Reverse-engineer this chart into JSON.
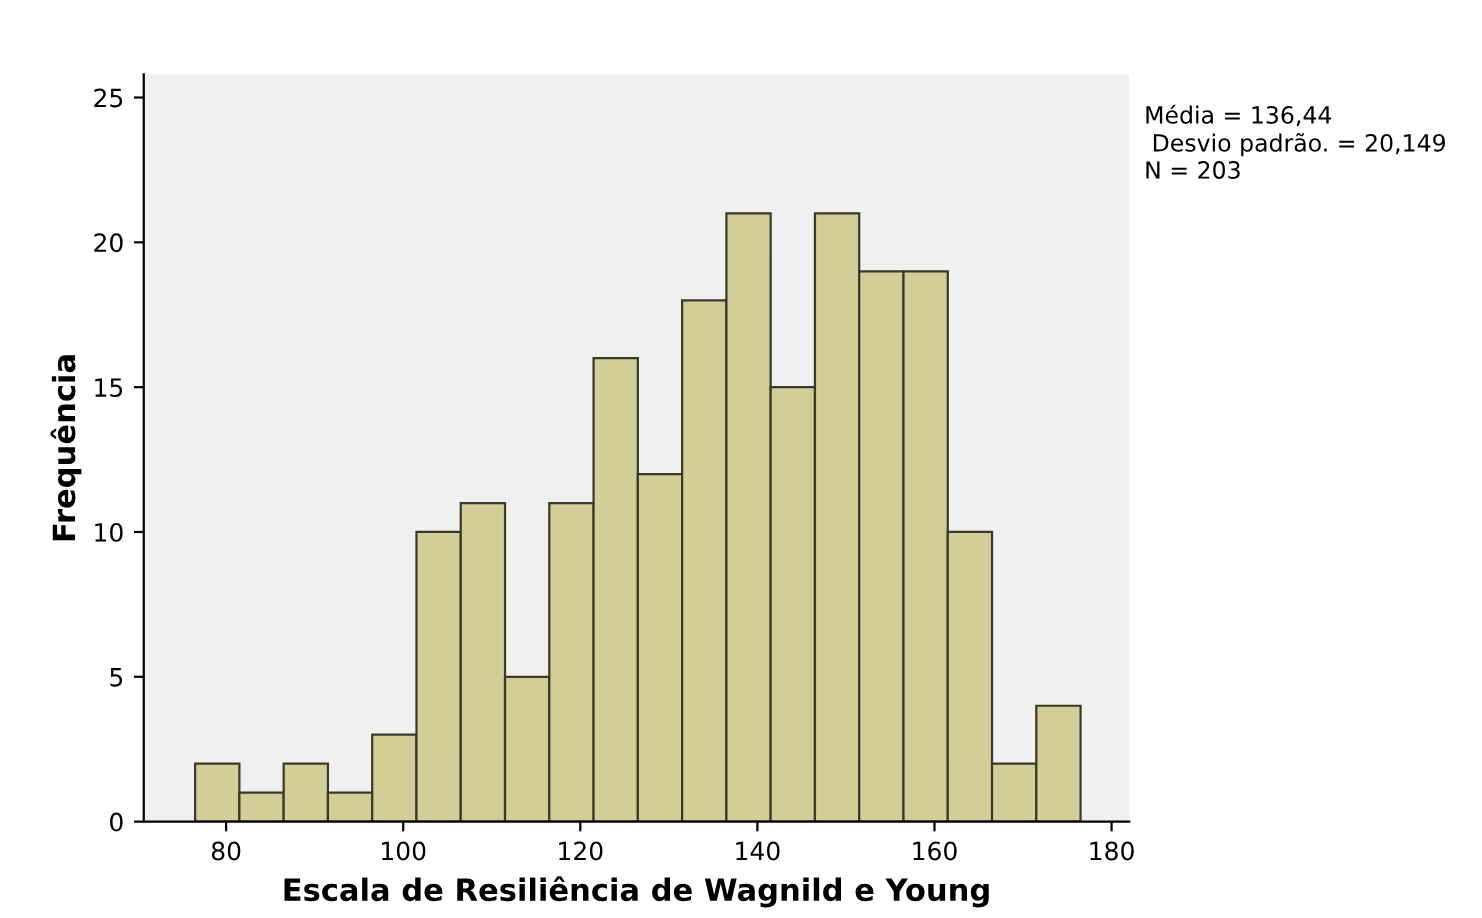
{
  "chart_data": {
    "type": "histogram",
    "xlabel": "Escala de Resiliência de Wagnild e Young",
    "ylabel": "Frequência",
    "bins": [
      76.5,
      81.5,
      86.5,
      91.5,
      96.5,
      101.5,
      106.5,
      111.5,
      116.5,
      121.5,
      126.5,
      131.5,
      136.5,
      141.5,
      146.5,
      151.5,
      156.5,
      161.5,
      166.5,
      171.5,
      176.5
    ],
    "values": [
      2,
      1,
      2,
      1,
      3,
      10,
      11,
      5,
      11,
      16,
      12,
      18,
      21,
      15,
      21,
      19,
      19,
      10,
      2,
      4
    ],
    "color": "#d3ce97",
    "xlim": [
      70.7,
      182
    ],
    "xticks": [
      80,
      100,
      120,
      140,
      160,
      180
    ],
    "ylim": [
      0,
      25.8
    ],
    "yticks": [
      0,
      5,
      10,
      15,
      20,
      25
    ],
    "grid": false,
    "legend": false,
    "annotations": [
      "Média = 136,44",
      " Desvio padrão. = 20,149",
      "N = 203"
    ]
  }
}
